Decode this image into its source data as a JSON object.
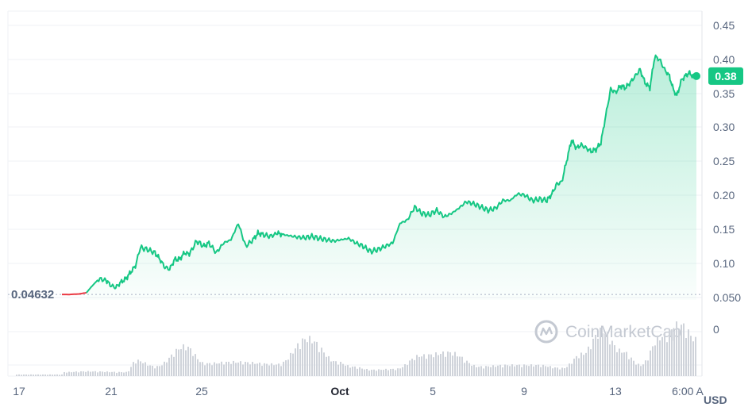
{
  "watermark": "CoinMarketCap",
  "chart_data": {
    "type": "area",
    "currency": "USD",
    "colors": {
      "up": "#16c784",
      "down": "#ea3943",
      "volume": "#cfd3da",
      "grid": "#eff2f5"
    },
    "y_ticks": [
      "0.45",
      "0.40",
      "0.35",
      "0.30",
      "0.25",
      "0.20",
      "0.15",
      "0.10",
      "0.050"
    ],
    "ylim": [
      0.038,
      0.455
    ],
    "x_ticks": [
      "17",
      "21",
      "25",
      "Oct",
      "5",
      "9",
      "13",
      "6:00 A"
    ],
    "volume_axis_label": "0",
    "baseline_label": "0.04632",
    "baseline_value": 0.04632,
    "last_price_label": "0.38",
    "last_price": 0.38,
    "price_series": {
      "x": [
        0,
        0.3,
        0.7,
        1.0,
        1.2,
        1.5,
        1.8,
        2.0,
        2.2,
        2.4,
        2.6,
        2.8,
        3.0,
        3.2,
        3.5,
        3.8,
        4.0,
        4.2,
        4.4,
        4.6,
        4.8,
        5.0,
        5.2,
        5.5,
        5.8,
        6.0,
        6.3,
        6.6,
        6.9,
        7.2,
        7.5,
        7.8,
        8.0,
        8.2,
        8.5,
        8.8,
        9.0,
        9.3,
        9.6,
        9.9,
        10.2,
        10.5,
        10.8,
        11.1,
        11.4,
        11.7,
        12.0,
        12.3,
        12.6,
        12.9,
        13.2,
        13.5,
        13.8,
        14.1,
        14.4,
        14.7,
        15.0,
        15.3,
        15.6,
        15.9,
        16.2,
        16.5,
        16.8,
        17.1,
        17.4,
        17.7,
        18.0,
        18.3,
        18.6,
        18.9,
        19.2,
        19.5,
        19.8,
        20.0,
        20.2,
        20.4,
        20.6,
        20.8,
        21.0,
        21.2,
        21.4,
        21.6,
        21.8,
        22.0,
        22.2,
        22.4,
        22.6,
        22.8,
        23.0,
        23.2,
        23.4,
        23.6,
        23.8,
        24.0,
        24.2,
        24.4,
        24.6,
        24.8,
        24.95,
        25.1,
        25.3,
        25.45,
        25.6,
        25.75,
        25.9
      ],
      "values": [
        0.04632,
        0.0463,
        0.0471,
        0.049,
        0.058,
        0.07,
        0.068,
        0.06,
        0.057,
        0.065,
        0.07,
        0.08,
        0.09,
        0.118,
        0.115,
        0.11,
        0.1,
        0.088,
        0.085,
        0.1,
        0.1,
        0.11,
        0.108,
        0.128,
        0.12,
        0.125,
        0.11,
        0.125,
        0.13,
        0.155,
        0.12,
        0.13,
        0.14,
        0.138,
        0.135,
        0.14,
        0.138,
        0.136,
        0.134,
        0.133,
        0.135,
        0.132,
        0.13,
        0.128,
        0.13,
        0.132,
        0.125,
        0.12,
        0.112,
        0.115,
        0.12,
        0.125,
        0.155,
        0.16,
        0.18,
        0.17,
        0.168,
        0.175,
        0.165,
        0.17,
        0.178,
        0.188,
        0.185,
        0.18,
        0.175,
        0.178,
        0.19,
        0.19,
        0.2,
        0.198,
        0.19,
        0.192,
        0.19,
        0.2,
        0.215,
        0.218,
        0.25,
        0.282,
        0.27,
        0.275,
        0.27,
        0.265,
        0.268,
        0.278,
        0.32,
        0.36,
        0.355,
        0.365,
        0.362,
        0.37,
        0.38,
        0.39,
        0.37,
        0.362,
        0.41,
        0.405,
        0.39,
        0.38,
        0.36,
        0.35,
        0.375,
        0.38,
        0.385,
        0.38,
        0.38
      ]
    },
    "volume_series": {
      "x": [
        0,
        1,
        2.6,
        3,
        3.8,
        5,
        5.8,
        7,
        8.8,
        10,
        11.2,
        11.8,
        12.6,
        13.6,
        14.6,
        15.8,
        17,
        18.2,
        19.4,
        20.4,
        21.2,
        22,
        22.8,
        23.6,
        24.4,
        25.2,
        25.9
      ],
      "values": [
        0.5,
        0.6,
        0.5,
        2.0,
        1.2,
        3.8,
        1.6,
        1.8,
        1.5,
        4.8,
        1.8,
        1.2,
        0.8,
        0.9,
        2.6,
        3.0,
        1.2,
        1.4,
        1.4,
        1.0,
        2.8,
        5.8,
        3.2,
        1.4,
        5.0,
        6.6,
        4.6
      ],
      "ylim": [
        0,
        8
      ]
    }
  }
}
